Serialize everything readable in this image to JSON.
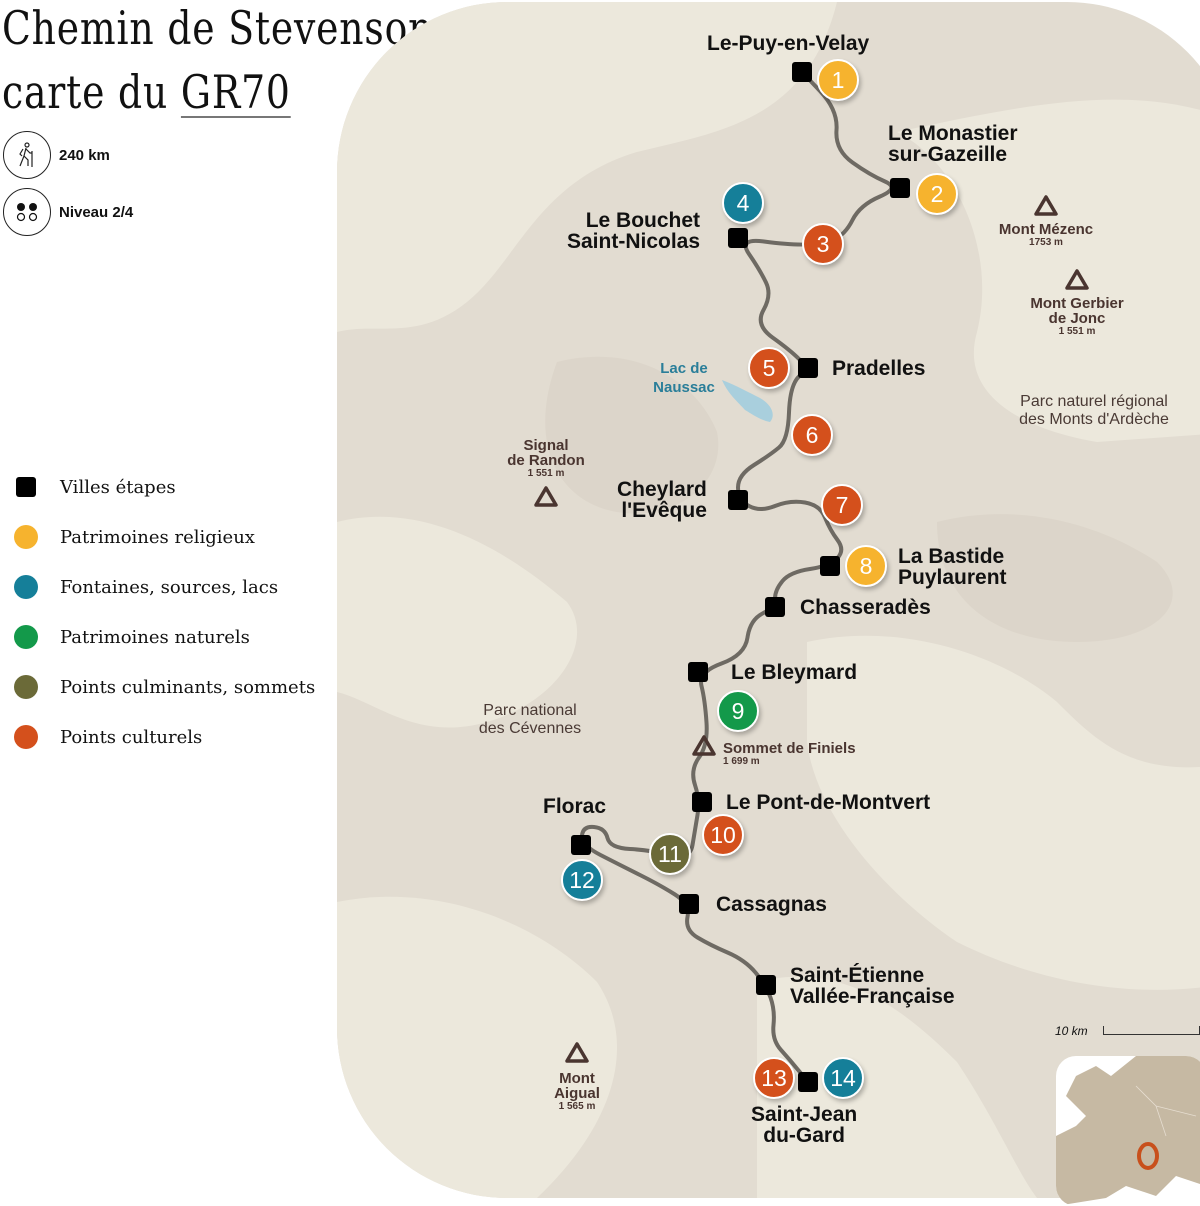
{
  "header": {
    "title_line1": "Chemin de Stevenson",
    "title_line2_prefix": "carte du ",
    "title_line2_code": "GR70"
  },
  "stats": [
    {
      "icon": "hiker-icon",
      "text": "240 km"
    },
    {
      "icon": "difficulty-dots-icon",
      "text": "Niveau 2/4"
    }
  ],
  "legend": [
    {
      "kind": "square",
      "label": "Villes étapes",
      "color": "#000000"
    },
    {
      "kind": "dot",
      "label": "Patrimoines religieux",
      "color": "#f6b32e"
    },
    {
      "kind": "dot",
      "label": "Fontaines, sources, lacs",
      "color": "#157f99"
    },
    {
      "kind": "dot",
      "label": "Patrimoines naturels",
      "color": "#13994a"
    },
    {
      "kind": "dot",
      "label": "Points culminants, sommets",
      "color": "#6b6a38"
    },
    {
      "kind": "dot",
      "label": "Points culturels",
      "color": "#d4501c"
    }
  ],
  "stages": [
    {
      "name": "Le-Puy-en-Velay"
    },
    {
      "name": "Le Monastier\nsur-Gazeille"
    },
    {
      "name": "Le Bouchet\nSaint-Nicolas"
    },
    {
      "name": "Pradelles"
    },
    {
      "name": "Cheylard\nl'Evêque"
    },
    {
      "name": "La Bastide\nPuylaurent"
    },
    {
      "name": "Chasseradès"
    },
    {
      "name": "Le Bleymard"
    },
    {
      "name": "Le Pont-de-Montvert"
    },
    {
      "name": "Florac"
    },
    {
      "name": "Cassagnas"
    },
    {
      "name": "Saint-Étienne\nVallée-Française"
    },
    {
      "name": "Saint-Jean\ndu-Gard"
    }
  ],
  "points": [
    {
      "number": "1",
      "category": "Patrimoines religieux"
    },
    {
      "number": "2",
      "category": "Patrimoines religieux"
    },
    {
      "number": "3",
      "category": "Points culturels"
    },
    {
      "number": "4",
      "category": "Fontaines, sources, lacs"
    },
    {
      "number": "5",
      "category": "Points culturels"
    },
    {
      "number": "6",
      "category": "Points culturels"
    },
    {
      "number": "7",
      "category": "Points culturels"
    },
    {
      "number": "8",
      "category": "Patrimoines religieux"
    },
    {
      "number": "9",
      "category": "Patrimoines naturels"
    },
    {
      "number": "10",
      "category": "Points culturels"
    },
    {
      "number": "11",
      "category": "Points culminants, sommets"
    },
    {
      "number": "12",
      "category": "Fontaines, sources, lacs"
    },
    {
      "number": "13",
      "category": "Points culturels"
    },
    {
      "number": "14",
      "category": "Fontaines, sources, lacs"
    }
  ],
  "summits": [
    {
      "name": "Mont Mézenc",
      "altitude": "1753 m"
    },
    {
      "name": "Mont Gerbier\nde Jonc",
      "altitude": "1 551 m"
    },
    {
      "name": "Signal\nde Randon",
      "altitude": "1 551 m"
    },
    {
      "name": "Sommet de Finiels",
      "altitude": "1 699 m"
    },
    {
      "name": "Mont\nAigual",
      "altitude": "1 565 m"
    }
  ],
  "parks": [
    {
      "name": "Parc naturel régional\ndes Monts d'Ardèche"
    },
    {
      "name": "Parc national\ndes Cévennes"
    }
  ],
  "lake": {
    "name": "Lac de\nNaussac"
  },
  "scale": {
    "label": "10 km"
  },
  "colors": {
    "map_bg": "#e2dcd1",
    "map_light": "#ece8dc",
    "route": "#6e6a63",
    "summit": "#4a3530",
    "lake": "#a9cfdd",
    "inset_land": "#c6b9a3",
    "inset_marker": "#c8501c"
  }
}
